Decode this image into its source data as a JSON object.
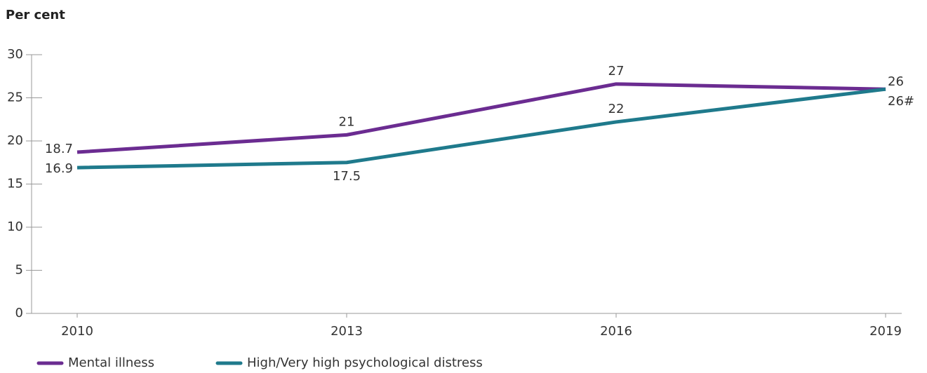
{
  "chart_data": {
    "type": "line",
    "y_label": "Per cent",
    "categories": [
      "2010",
      "2013",
      "2016",
      "2019"
    ],
    "series": [
      {
        "name": "Mental illness",
        "color": "#6b2c91",
        "values": [
          18.7,
          20.7,
          26.6,
          26
        ],
        "value_labels": [
          "18.7",
          "21",
          "27",
          "26"
        ]
      },
      {
        "name": "High/Very high psychological distress",
        "color": "#1f7a8c",
        "values": [
          16.9,
          17.5,
          22.2,
          26
        ],
        "value_labels": [
          "16.9",
          "17.5",
          "22",
          "26#"
        ]
      }
    ],
    "ylim": [
      0,
      30
    ],
    "yticks": [
      0,
      5,
      10,
      15,
      20,
      25,
      30
    ]
  }
}
